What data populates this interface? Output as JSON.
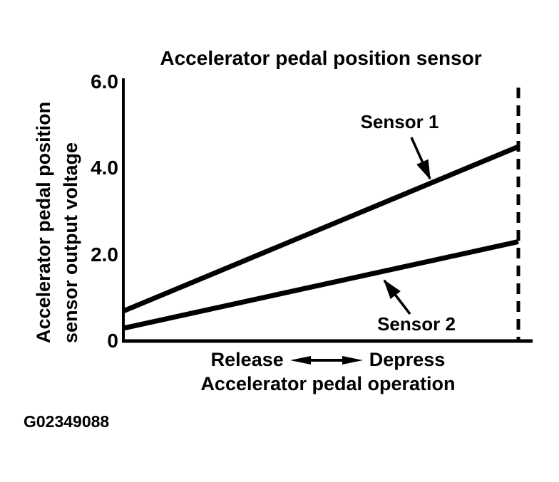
{
  "figure_id": "G02349088",
  "colors": {
    "ink": "#000000",
    "background": "#ffffff"
  },
  "chart_data": {
    "type": "line",
    "title": "Accelerator pedal position sensor",
    "ylabel": "Accelerator pedal position sensor output voltage",
    "ylabel_lines": [
      "Accelerator pedal position",
      "sensor output voltage"
    ],
    "xlabel": "Accelerator pedal operation",
    "x_direction_labels": {
      "left": "Release",
      "right": "Depress"
    },
    "ylim": [
      0,
      6
    ],
    "yticks": [
      {
        "value": 6.0,
        "label": "6.0"
      },
      {
        "value": 4.0,
        "label": "4.0"
      },
      {
        "value": 2.0,
        "label": "2.0"
      },
      {
        "value": 0,
        "label": "0"
      }
    ],
    "x": [
      0,
      1
    ],
    "series": [
      {
        "name": "Sensor 1",
        "values": [
          0.7,
          4.5
        ]
      },
      {
        "name": "Sensor 2",
        "values": [
          0.3,
          2.3
        ]
      }
    ],
    "grid": false,
    "legend_position": "inline-annotations",
    "full_depress_marker": "dashed-vertical-line-at-right"
  }
}
